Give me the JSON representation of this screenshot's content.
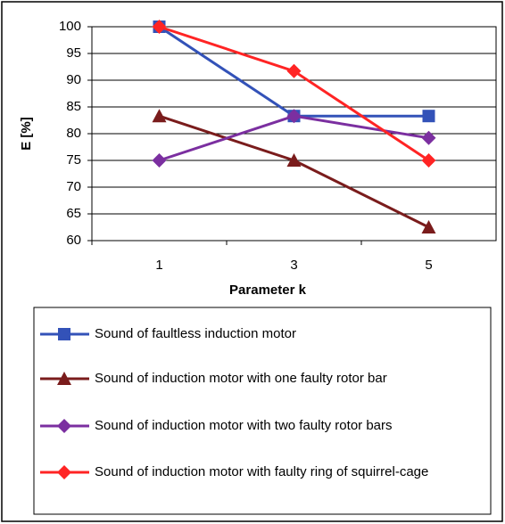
{
  "chart_data": {
    "type": "line",
    "xlabel": "Parameter k",
    "ylabel": "E [%]",
    "categories": [
      "1",
      "3",
      "5"
    ],
    "ylim": [
      60,
      100
    ],
    "yticks": [
      60,
      65,
      70,
      75,
      80,
      85,
      90,
      95,
      100
    ],
    "grid": true,
    "series": [
      {
        "name": "Sound of faultless induction motor",
        "color": "#3352b8",
        "marker": "square",
        "values": [
          100,
          83.3,
          83.3
        ]
      },
      {
        "name": "Sound of induction motor with one faulty rotor bar",
        "color": "#7a1c1c",
        "marker": "triangle",
        "values": [
          83.3,
          75,
          62.5
        ]
      },
      {
        "name": "Sound of induction motor with two faulty rotor bars",
        "color": "#7b2fa0",
        "marker": "diamond",
        "values": [
          75,
          83.3,
          79.2
        ]
      },
      {
        "name": "Sound of induction motor with faulty ring of squirrel-cage",
        "color": "#ff2424",
        "marker": "diamond",
        "values": [
          100,
          91.7,
          75
        ]
      }
    ]
  }
}
